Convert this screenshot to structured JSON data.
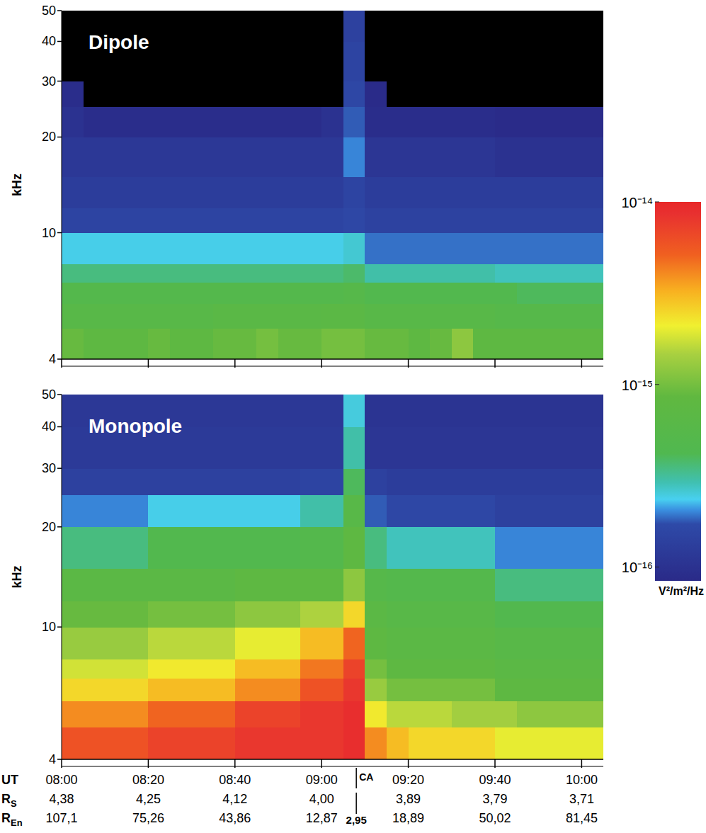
{
  "chart_data": [
    {
      "type": "heatmap",
      "title": "Dipole",
      "ylabel": "kHz",
      "log": "y",
      "xlim": [
        0,
        125
      ],
      "xticks": [
        0,
        20,
        40,
        60,
        80,
        100,
        120
      ],
      "tick_labels": "y",
      "ylim": [
        4,
        50
      ],
      "yticks": [
        4,
        10,
        20,
        30,
        40,
        50
      ],
      "x_edges": [
        0,
        5,
        10,
        15,
        20,
        25,
        30,
        35,
        40,
        45,
        50,
        55,
        60,
        65,
        70,
        75,
        80,
        85,
        90,
        95,
        100,
        105,
        110,
        115,
        120,
        125
      ],
      "y_edges": [
        4,
        5,
        6,
        7,
        8,
        10,
        12,
        15,
        20,
        25,
        30,
        40,
        50
      ],
      "cells": [
        [
          9e-16,
          8e-16,
          8e-16,
          8e-16,
          9e-16,
          8e-16,
          8e-16,
          9e-16,
          9e-16,
          1e-15,
          9e-16,
          9e-16,
          1e-15,
          1e-15,
          9e-16,
          9e-16,
          8e-16,
          9e-16,
          1.2e-15,
          8e-16,
          8e-16,
          8e-16,
          8e-16,
          8e-16,
          8e-16
        ],
        [
          6e-16,
          6e-16,
          6e-16,
          6e-16,
          6e-16,
          6e-16,
          6e-16,
          6.5e-16,
          6.5e-16,
          6.5e-16,
          6.5e-16,
          6.5e-16,
          7e-16,
          7e-16,
          6e-16,
          6e-16,
          6e-16,
          6e-16,
          6e-16,
          6e-16,
          5.5e-16,
          5.5e-16,
          5.5e-16,
          5.5e-16,
          5.5e-16
        ],
        [
          5e-16,
          5e-16,
          5e-16,
          5e-16,
          5e-16,
          5e-16,
          5e-16,
          5e-16,
          5e-16,
          5e-16,
          5e-16,
          5e-16,
          5e-16,
          5.5e-16,
          4.5e-16,
          4.5e-16,
          4.5e-16,
          4.5e-16,
          4.5e-16,
          4.5e-16,
          4.5e-16,
          4e-16,
          4e-16,
          4e-16,
          4e-16
        ],
        [
          3.5e-16,
          3.5e-16,
          3.5e-16,
          3.5e-16,
          3.5e-16,
          3.5e-16,
          3.5e-16,
          3.5e-16,
          3.5e-16,
          3.5e-16,
          3.5e-16,
          3.5e-16,
          3.5e-16,
          3.8e-16,
          3e-16,
          3e-16,
          3e-16,
          3e-16,
          3e-16,
          3e-16,
          2.8e-16,
          2.8e-16,
          2.8e-16,
          2.8e-16,
          2.8e-16
        ],
        [
          2.4e-16,
          2.4e-16,
          2.4e-16,
          2.4e-16,
          2.4e-16,
          2.4e-16,
          2.4e-16,
          2.4e-16,
          2.4e-16,
          2.4e-16,
          2.4e-16,
          2.4e-16,
          2.4e-16,
          2.6e-16,
          1.9e-16,
          1.9e-16,
          1.9e-16,
          1.9e-16,
          1.9e-16,
          1.9e-16,
          1.9e-16,
          1.9e-16,
          1.9e-16,
          1.9e-16,
          1.9e-16
        ],
        [
          1.5e-16,
          1.5e-16,
          1.5e-16,
          1.5e-16,
          1.5e-16,
          1.5e-16,
          1.5e-16,
          1.5e-16,
          1.5e-16,
          1.5e-16,
          1.5e-16,
          1.5e-16,
          1.5e-16,
          1.6e-16,
          1.45e-16,
          1.45e-16,
          1.45e-16,
          1.45e-16,
          1.45e-16,
          1.45e-16,
          1.45e-16,
          1.45e-16,
          1.45e-16,
          1.45e-16,
          1.45e-16
        ],
        [
          1.3e-16,
          1.3e-16,
          1.3e-16,
          1.3e-16,
          1.3e-16,
          1.3e-16,
          1.3e-16,
          1.3e-16,
          1.3e-16,
          1.3e-16,
          1.3e-16,
          1.3e-16,
          1.3e-16,
          1.5e-16,
          1.3e-16,
          1.3e-16,
          1.3e-16,
          1.3e-16,
          1.3e-16,
          1.3e-16,
          1.3e-16,
          1.3e-16,
          1.3e-16,
          1.3e-16,
          1.3e-16
        ],
        [
          1.15e-16,
          1.15e-16,
          1.15e-16,
          1.15e-16,
          1.15e-16,
          1.15e-16,
          1.15e-16,
          1.15e-16,
          1.15e-16,
          1.15e-16,
          1.15e-16,
          1.15e-16,
          1.15e-16,
          2e-16,
          1.1e-16,
          1.1e-16,
          1.1e-16,
          1.1e-16,
          1.1e-16,
          1.1e-16,
          1e-16,
          1e-16,
          1e-16,
          1e-16,
          1e-16
        ],
        [
          1e-16,
          9e-17,
          9e-17,
          9e-17,
          9e-17,
          9e-17,
          9e-17,
          9e-17,
          9e-17,
          9e-17,
          9e-17,
          9e-17,
          1e-16,
          1.8e-16,
          9e-17,
          9e-17,
          9e-17,
          9e-17,
          9e-17,
          9e-17,
          8.5e-17,
          8.5e-17,
          8.5e-17,
          8.5e-17,
          8.5e-17
        ],
        [
          9e-17,
          7e-17,
          5e-17,
          5e-17,
          5e-17,
          5e-17,
          7e-17,
          7e-17,
          7e-17,
          7e-17,
          7e-17,
          7e-17,
          7e-17,
          1.6e-16,
          8.6e-17,
          7e-17,
          7e-17,
          7e-17,
          7e-17,
          7e-17,
          7e-17,
          7e-17,
          7e-17,
          7e-17,
          7e-17
        ],
        [
          7e-17,
          5e-17,
          5e-17,
          5e-17,
          5e-17,
          5e-17,
          5e-17,
          5e-17,
          5e-17,
          5e-17,
          5e-17,
          5e-17,
          5e-17,
          1.5e-16,
          5e-17,
          5e-17,
          5e-17,
          5e-17,
          5e-17,
          5e-17,
          5e-17,
          5e-17,
          5e-17,
          5e-17,
          5e-17
        ],
        [
          5e-17,
          5e-17,
          5e-17,
          5e-17,
          5e-17,
          5e-17,
          5e-17,
          5e-17,
          5e-17,
          5e-17,
          5e-17,
          5e-17,
          5e-17,
          1.4e-16,
          5e-17,
          5e-17,
          5e-17,
          5e-17,
          5e-17,
          5e-17,
          5e-17,
          5e-17,
          5e-17,
          5e-17,
          5e-17
        ]
      ]
    },
    {
      "type": "heatmap",
      "title": "Monopole",
      "ylabel": "kHz",
      "log": "y",
      "xlabel": "UT",
      "xlim": [
        0,
        125
      ],
      "xticks": [
        {
          "value": 0,
          "label": "08:00"
        },
        {
          "value": 20,
          "label": "08:20"
        },
        {
          "value": 40,
          "label": "08:40"
        },
        {
          "value": 60,
          "label": "09:00"
        },
        {
          "value": 80,
          "label": "09:20"
        },
        {
          "value": 100,
          "label": "09:40"
        },
        {
          "value": 120,
          "label": "10:00"
        }
      ],
      "xtick_rows": [
        {
          "label": "R",
          "subscript": "S",
          "values": [
            "4,38",
            "4,25",
            "4,12",
            "4,00",
            "3,89",
            "3,79",
            "3,71"
          ]
        },
        {
          "label": "R",
          "subscript": "En",
          "values": [
            "107,1",
            "75,26",
            "43,86",
            "12,87",
            "18,89",
            "50,02",
            "81,45"
          ]
        }
      ],
      "annotations": [
        {
          "x": 68,
          "text": "CA",
          "r_en": "2,95"
        }
      ],
      "ylim": [
        4,
        50
      ],
      "yticks": [
        4,
        10,
        20,
        30,
        40,
        50
      ],
      "x_edges": [
        0,
        5,
        10,
        15,
        20,
        25,
        30,
        35,
        40,
        45,
        50,
        55,
        60,
        65,
        70,
        75,
        80,
        85,
        90,
        95,
        100,
        105,
        110,
        115,
        120,
        125
      ],
      "y_edges": [
        4,
        5,
        6,
        7,
        8,
        10,
        12,
        15,
        20,
        25,
        30,
        40,
        50
      ],
      "cells": [
        [
          6e-15,
          6e-15,
          6e-15,
          6e-15,
          7e-15,
          7e-15,
          7e-15,
          7e-15,
          8e-15,
          8e-15,
          8e-15,
          8e-15,
          8e-15,
          9e-15,
          4e-15,
          3e-15,
          2.5e-15,
          2.5e-15,
          2.5e-15,
          2.5e-15,
          2e-15,
          2e-15,
          2e-15,
          2e-15,
          2e-15
        ],
        [
          4e-15,
          4e-15,
          4e-15,
          4e-15,
          5e-15,
          5e-15,
          5e-15,
          5e-15,
          7e-15,
          7e-15,
          7e-15,
          8e-15,
          8e-15,
          9e-15,
          2.2e-15,
          1.6e-15,
          1.6e-15,
          1.6e-15,
          1.4e-15,
          1.4e-15,
          1.4e-15,
          1.2e-15,
          1.2e-15,
          1.2e-15,
          1.2e-15
        ],
        [
          2.5e-15,
          2.5e-15,
          2.5e-15,
          2.5e-15,
          3e-15,
          3e-15,
          3e-15,
          3e-15,
          4e-15,
          4e-15,
          4e-15,
          6e-15,
          6e-15,
          8e-15,
          1.3e-15,
          1e-15,
          1e-15,
          1e-15,
          1e-15,
          1e-15,
          8e-16,
          8e-16,
          8e-16,
          8e-16,
          8e-16
        ],
        [
          1.8e-15,
          1.8e-15,
          1.8e-15,
          1.8e-15,
          2.2e-15,
          2.2e-15,
          2.2e-15,
          2.2e-15,
          3e-15,
          3e-15,
          3e-15,
          4.5e-15,
          4.5e-15,
          7e-15,
          1e-15,
          8e-16,
          8e-16,
          8e-16,
          8e-16,
          8e-16,
          7e-16,
          7e-16,
          7e-16,
          7e-16,
          7e-16
        ],
        [
          1.3e-15,
          1.3e-15,
          1.3e-15,
          1.3e-15,
          1.6e-15,
          1.6e-15,
          1.6e-15,
          1.6e-15,
          2e-15,
          2e-15,
          2e-15,
          3e-15,
          3e-15,
          5e-15,
          8e-16,
          7e-16,
          7e-16,
          7e-16,
          7e-16,
          7e-16,
          6e-16,
          6e-16,
          6e-16,
          6e-16,
          6e-16
        ],
        [
          9e-16,
          9e-16,
          9e-16,
          9e-16,
          1e-15,
          1e-15,
          1e-15,
          1e-15,
          1.2e-15,
          1.2e-15,
          1.2e-15,
          1.5e-15,
          1.5e-15,
          2.5e-15,
          7e-16,
          6e-16,
          6e-16,
          6e-16,
          6e-16,
          6e-16,
          4.5e-16,
          4.5e-16,
          4.5e-16,
          4.5e-16,
          4.5e-16
        ],
        [
          7e-16,
          7e-16,
          7e-16,
          7e-16,
          7e-16,
          7e-16,
          7e-16,
          7e-16,
          8e-16,
          8e-16,
          8e-16,
          8e-16,
          8e-16,
          1.2e-15,
          5.5e-16,
          5e-16,
          5e-16,
          5e-16,
          5e-16,
          5e-16,
          3.5e-16,
          3.5e-16,
          3.5e-16,
          3.5e-16,
          3.5e-16
        ],
        [
          3.5e-16,
          3.5e-16,
          3.5e-16,
          3.5e-16,
          4.5e-16,
          4.5e-16,
          4.5e-16,
          4.5e-16,
          4.5e-16,
          4.5e-16,
          4.5e-16,
          5e-16,
          5e-16,
          8e-16,
          3.5e-16,
          2.8e-16,
          2.8e-16,
          2.8e-16,
          2.8e-16,
          2.8e-16,
          2e-16,
          2e-16,
          2e-16,
          2e-16,
          2e-16
        ],
        [
          2e-16,
          2e-16,
          2e-16,
          2e-16,
          2.4e-16,
          2.4e-16,
          2.4e-16,
          2.4e-16,
          2.4e-16,
          2.4e-16,
          2.4e-16,
          3e-16,
          3e-16,
          6e-16,
          1.8e-16,
          1.6e-16,
          1.6e-16,
          1.6e-16,
          1.6e-16,
          1.6e-16,
          1.4e-16,
          1.4e-16,
          1.4e-16,
          1.4e-16,
          1.4e-16
        ],
        [
          1.4e-16,
          1.4e-16,
          1.4e-16,
          1.4e-16,
          1.4e-16,
          1.4e-16,
          1.4e-16,
          1.4e-16,
          1.4e-16,
          1.4e-16,
          1.4e-16,
          1.5e-16,
          1.5e-16,
          4e-16,
          1.4e-16,
          1.3e-16,
          1.3e-16,
          1.3e-16,
          1.3e-16,
          1.3e-16,
          1.3e-16,
          1.3e-16,
          1.3e-16,
          1.3e-16,
          1.3e-16
        ],
        [
          1.2e-16,
          1.2e-16,
          1.2e-16,
          1.2e-16,
          1.2e-16,
          1.2e-16,
          1.2e-16,
          1.2e-16,
          1.2e-16,
          1.2e-16,
          1.2e-16,
          1.2e-16,
          1.2e-16,
          3e-16,
          1.1e-16,
          1.1e-16,
          1.1e-16,
          1.1e-16,
          1.1e-16,
          1.1e-16,
          1.1e-16,
          1.1e-16,
          1.1e-16,
          1.1e-16,
          1.1e-16
        ],
        [
          1.15e-16,
          1.15e-16,
          1.15e-16,
          1.15e-16,
          1.15e-16,
          1.15e-16,
          1.15e-16,
          1.15e-16,
          1.15e-16,
          1.15e-16,
          1.15e-16,
          1.15e-16,
          1.15e-16,
          2.5e-16,
          1.05e-16,
          1.05e-16,
          1.05e-16,
          1.05e-16,
          1.05e-16,
          1.05e-16,
          1.05e-16,
          1.05e-16,
          1.05e-16,
          1.05e-16,
          1.05e-16
        ]
      ]
    }
  ],
  "color_bar": {
    "range": [
      8.4e-17,
      1e-14
    ],
    "log": true,
    "ticks": [
      {
        "value": 1e-14,
        "label": "10⁻¹⁴"
      },
      {
        "value": 1e-15,
        "label": "10⁻¹⁵"
      },
      {
        "value": 1e-16,
        "label": "10⁻¹⁶"
      }
    ],
    "label": "V²/m²/Hz"
  }
}
